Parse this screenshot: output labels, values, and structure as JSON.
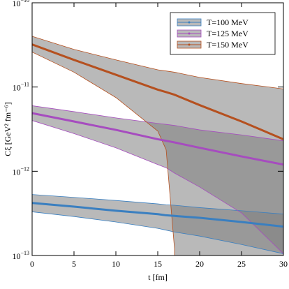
{
  "chart_data": {
    "type": "line",
    "xlabel": "t [fm]",
    "ylabel": "Cξ [GeV² fm⁻⁶]",
    "x": [
      0,
      5,
      10,
      15,
      16,
      17,
      20,
      25,
      30
    ],
    "xlim": [
      0,
      30
    ],
    "xticks": [
      0,
      5,
      10,
      15,
      20,
      25,
      30
    ],
    "ylim": [
      1e-13,
      1e-10
    ],
    "yticks": [
      {
        "value": 1e-13,
        "label": "10",
        "exponent": "−13"
      },
      {
        "value": 1e-12,
        "label": "10",
        "exponent": "−12"
      },
      {
        "value": 1e-11,
        "label": "10",
        "exponent": "−11"
      },
      {
        "value": 1e-10,
        "label": "10",
        "exponent": "−10"
      }
    ],
    "log_y": true,
    "legend": "upper right",
    "band_color": "#808080",
    "series": [
      {
        "name": "T=100 MeV",
        "color": "#3a7fc0",
        "values": [
          4.2e-13,
          3.8e-13,
          3.4e-13,
          3.1e-13,
          3e-13,
          2.95e-13,
          2.8e-13,
          2.5e-13,
          2.2e-13
        ],
        "upper": [
          5.3e-13,
          4.9e-13,
          4.5e-13,
          4.1e-13,
          4e-13,
          3.95e-13,
          3.7e-13,
          3.4e-13,
          3.1e-13
        ],
        "lower": [
          3.3e-13,
          2.9e-13,
          2.5e-13,
          2.1e-13,
          2e-13,
          1.9e-13,
          1.7e-13,
          1.35e-13,
          1.05e-13
        ]
      },
      {
        "name": "T=125 MeV",
        "color": "#a64cbf",
        "values": [
          4.9e-12,
          3.9e-12,
          3.1e-12,
          2.4e-12,
          2.3e-12,
          2.2e-12,
          1.9e-12,
          1.5e-12,
          1.2e-12
        ],
        "upper": [
          6e-12,
          5.1e-12,
          4.3e-12,
          3.7e-12,
          3.6e-12,
          3.5e-12,
          3.1e-12,
          2.7e-12,
          2.3e-12
        ],
        "lower": [
          4e-12,
          2.8e-12,
          1.9e-12,
          1.2e-12,
          1.1e-12,
          9.5e-13,
          6.5e-13,
          3.2e-13,
          1.05e-13
        ]
      },
      {
        "name": "T=150 MeV",
        "color": "#b5501f",
        "values": [
          3.2e-11,
          2.1e-11,
          1.4e-11,
          9.3e-12,
          8.7e-12,
          8.1e-12,
          6.1e-12,
          3.9e-12,
          2.4e-12
        ],
        "upper": [
          4e-11,
          2.8e-11,
          2.1e-11,
          1.6e-11,
          1.55e-11,
          1.5e-11,
          1.3e-11,
          1.1e-11,
          9.5e-12
        ],
        "lower": [
          2.6e-11,
          1.5e-11,
          7.5e-12,
          3e-12,
          1.8e-12,
          1.2e-13,
          null,
          null,
          null
        ]
      }
    ]
  }
}
